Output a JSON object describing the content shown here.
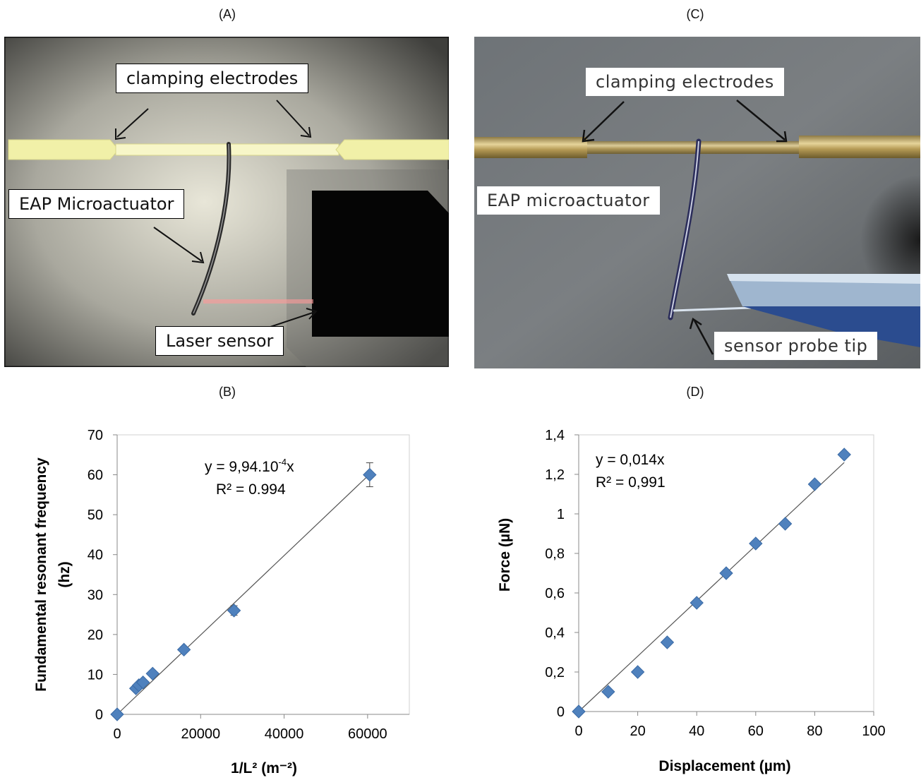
{
  "panels": {
    "A": {
      "letter": "(A)",
      "labels": {
        "clamping": "clamping electrodes",
        "actuator": "EAP Microactuator",
        "laser": "Laser sensor"
      }
    },
    "B": {
      "letter": "(B)"
    },
    "C": {
      "letter": "(C)",
      "labels": {
        "clamping": "clamping electrodes",
        "actuator": "EAP microactuator",
        "probe": "sensor probe tip"
      }
    },
    "D": {
      "letter": "(D)"
    }
  },
  "chart_data": [
    {
      "type": "scatter",
      "panel": "B",
      "ylabel_line1": "Fundamental resonant frequency",
      "ylabel_line2": "(hz)",
      "xlabel": "1/L² (m⁻²)",
      "xlim": [
        0,
        70000
      ],
      "ylim": [
        0,
        70
      ],
      "x_ticks": [
        0,
        20000,
        40000,
        60000
      ],
      "y_ticks": [
        0,
        10,
        20,
        30,
        40,
        50,
        60,
        70
      ],
      "x_tick_labels": [
        "0",
        "20000",
        "40000",
        "60000"
      ],
      "y_tick_labels": [
        "0",
        "10",
        "20",
        "30",
        "40",
        "50",
        "60",
        "70"
      ],
      "equation_base": "y = 9,94.10",
      "equation_exp": "-4",
      "equation_tail": "x",
      "r2": "R² = 0.994",
      "trendline_slope": 0.000994,
      "marker_color": "#4f81bd",
      "points": [
        {
          "x": 0,
          "y": 0
        },
        {
          "x": 4500,
          "y": 6.5
        },
        {
          "x": 5200,
          "y": 7.3
        },
        {
          "x": 6200,
          "y": 8.0
        },
        {
          "x": 8500,
          "y": 10.2
        },
        {
          "x": 16000,
          "y": 16.2
        },
        {
          "x": 28000,
          "y": 26.0
        },
        {
          "x": 60500,
          "y": 60.0
        }
      ],
      "error_bars": [
        {
          "x": 28000,
          "low": 24.8,
          "high": 27.2,
          "xlow": 26800,
          "xhigh": 29200
        },
        {
          "x": 60500,
          "low": 57.0,
          "high": 63.0
        }
      ]
    },
    {
      "type": "scatter",
      "panel": "D",
      "ylabel": "Force (µN)",
      "xlabel": "Displacement (µm)",
      "xlim": [
        0,
        100
      ],
      "ylim": [
        0,
        1.4
      ],
      "x_ticks": [
        0,
        20,
        40,
        60,
        80,
        100
      ],
      "y_ticks": [
        0,
        0.2,
        0.4,
        0.6,
        0.8,
        1.0,
        1.2,
        1.4
      ],
      "x_tick_labels": [
        "0",
        "20",
        "40",
        "60",
        "80",
        "100"
      ],
      "y_tick_labels": [
        "0",
        "0,2",
        "0,4",
        "0,6",
        "0,8",
        "1",
        "1,2",
        "1,4"
      ],
      "equation": "y = 0,014x",
      "r2": "R² = 0,991",
      "trendline_slope": 0.014,
      "marker_color": "#4f81bd",
      "points": [
        {
          "x": 0,
          "y": 0
        },
        {
          "x": 10,
          "y": 0.1
        },
        {
          "x": 20,
          "y": 0.2
        },
        {
          "x": 30,
          "y": 0.35
        },
        {
          "x": 40,
          "y": 0.55
        },
        {
          "x": 50,
          "y": 0.7
        },
        {
          "x": 60,
          "y": 0.85
        },
        {
          "x": 70,
          "y": 0.95
        },
        {
          "x": 80,
          "y": 1.15
        },
        {
          "x": 90,
          "y": 1.3
        }
      ]
    }
  ]
}
